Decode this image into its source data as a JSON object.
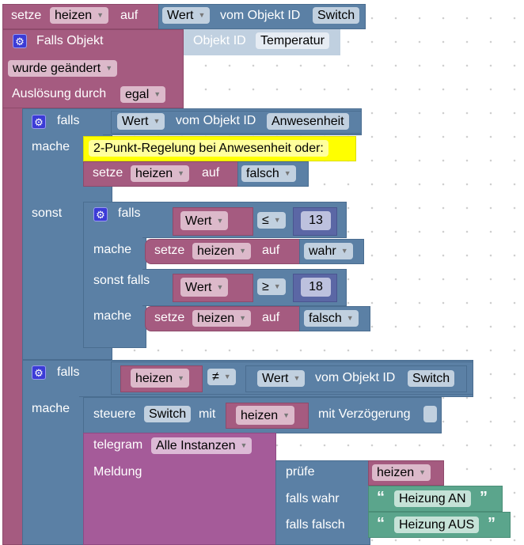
{
  "top_set": {
    "label": "setze",
    "var": "heizen",
    "to": "auf",
    "value_mode": "Wert",
    "from": "vom Objekt ID",
    "object": "Switch"
  },
  "trigger": {
    "label": "Falls Objekt",
    "object_label": "Objekt ID",
    "object": "Temperatur",
    "condition": "wurde geändert",
    "by_label": "Auslösung durch",
    "by": "egal"
  },
  "if1": {
    "if": "falls",
    "value_mode": "Wert",
    "from": "vom Objekt ID",
    "object": "Anwesenheit",
    "do": "mache",
    "else": "sonst",
    "comment": "2-Punkt-Regelung bei Anwesenheit oder:",
    "set": {
      "label": "setze",
      "var": "heizen",
      "to": "auf",
      "value": "falsch"
    }
  },
  "if2": {
    "if": "falls",
    "do": "mache",
    "elseif": "sonst falls",
    "cond1": {
      "left": "Wert",
      "op": "≤",
      "right": "13"
    },
    "set1": {
      "label": "setze",
      "var": "heizen",
      "to": "auf",
      "value": "wahr"
    },
    "cond2": {
      "left": "Wert",
      "op": "≥",
      "right": "18"
    },
    "set2": {
      "label": "setze",
      "var": "heizen",
      "to": "auf",
      "value": "falsch"
    }
  },
  "if3": {
    "if": "falls",
    "do": "mache",
    "left": "heizen",
    "op": "≠",
    "value_mode": "Wert",
    "from": "vom Objekt ID",
    "object": "Switch",
    "control": {
      "label": "steuere",
      "object": "Switch",
      "with": "mit",
      "var": "heizen",
      "delay": "mit Verzögerung"
    },
    "telegram": {
      "label": "telegram",
      "instance": "Alle Instanzen",
      "message": "Meldung",
      "ternary": {
        "test": "prüfe",
        "var": "heizen",
        "if_true": "falls wahr",
        "if_false": "falls falsch",
        "true_text": "Heizung AN",
        "false_text": "Heizung AUS"
      }
    }
  },
  "colors": {
    "variables": "#a55b80",
    "logic": "#5b80a5",
    "math": "#5b67a5",
    "telegram": "#a55b99",
    "text": "#5ba58c",
    "comment": "#ffff00"
  }
}
